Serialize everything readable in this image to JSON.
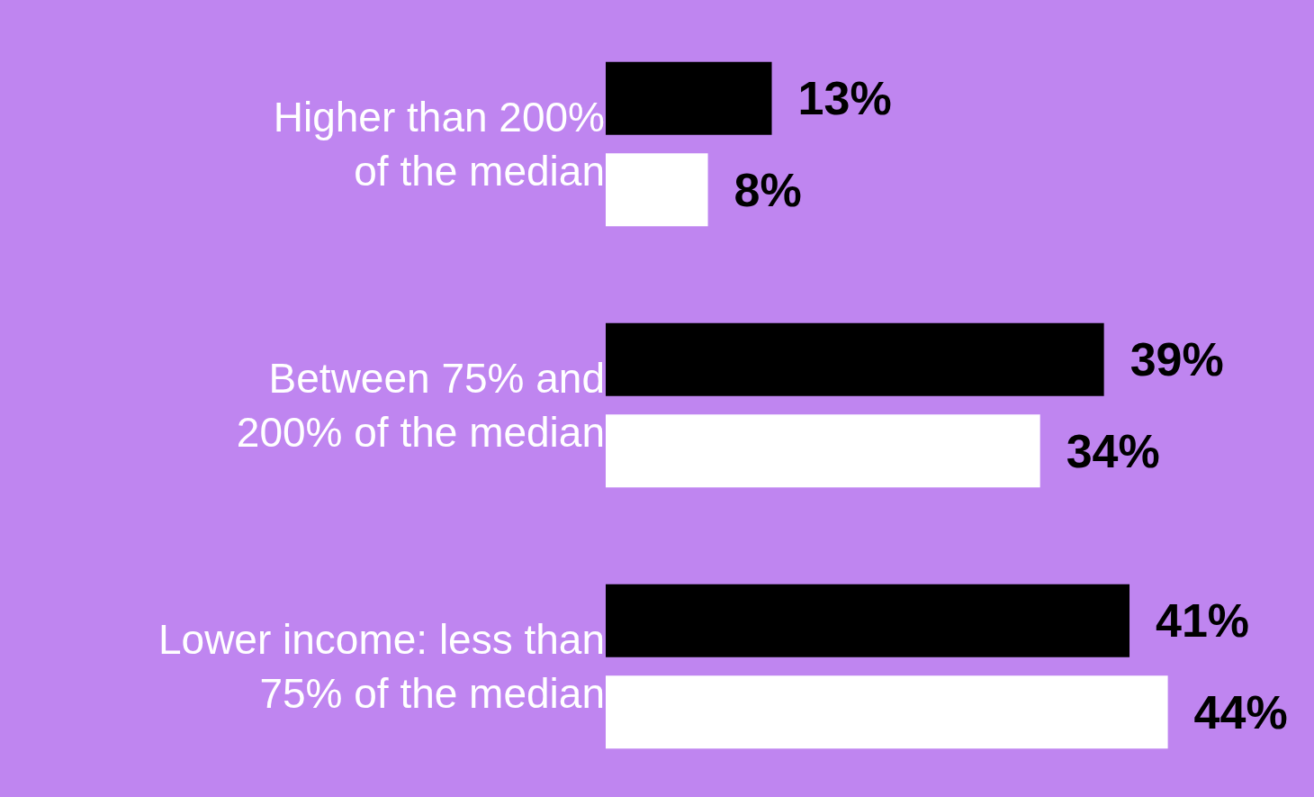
{
  "chart_data": {
    "type": "bar",
    "orientation": "horizontal",
    "categories": [
      "Higher than 200%\nof the median",
      "Between 75% and\n200% of the median",
      "Lower income: less than\n75% of the median"
    ],
    "series": [
      {
        "color": "#000000",
        "values": [
          13,
          39,
          41
        ],
        "value_labels": [
          "13%",
          "39%",
          "41%"
        ]
      },
      {
        "color": "#ffffff",
        "values": [
          8,
          34,
          44
        ],
        "value_labels": [
          "8%",
          "34%",
          "44%"
        ]
      }
    ]
  }
}
